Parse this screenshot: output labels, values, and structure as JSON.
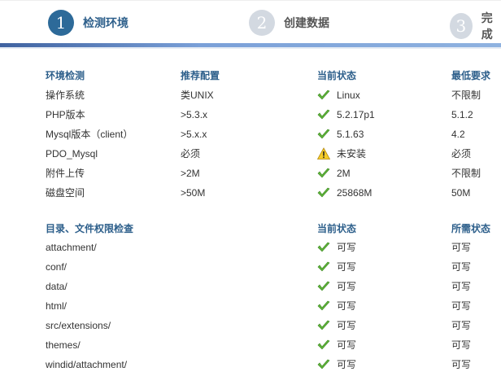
{
  "steps": [
    {
      "num": "1",
      "label": "检测环境",
      "active": true
    },
    {
      "num": "2",
      "label": "创建数据"
    },
    {
      "num": "3",
      "label": "完成"
    }
  ],
  "env": {
    "headers": [
      "环境检测",
      "推荐配置",
      "当前状态",
      "最低要求"
    ],
    "rows": [
      {
        "name": "操作系统",
        "rec": "类UNIX",
        "status": "Linux",
        "icon": "check-icon",
        "min": "不限制"
      },
      {
        "name": "PHP版本",
        "rec": ">5.3.x",
        "status": "5.2.17p1",
        "icon": "check-icon",
        "min": "5.1.2"
      },
      {
        "name": "Mysql版本（client）",
        "rec": ">5.x.x",
        "status": "5.1.63",
        "icon": "check-icon",
        "min": "4.2"
      },
      {
        "name": "PDO_Mysql",
        "rec": "必须",
        "status": "未安装",
        "icon": "warning-icon",
        "min": "必须"
      },
      {
        "name": "附件上传",
        "rec": ">2M",
        "status": "2M",
        "icon": "check-icon",
        "min": "不限制"
      },
      {
        "name": "磁盘空间",
        "rec": ">50M",
        "status": "25868M",
        "icon": "check-icon",
        "min": "50M"
      }
    ]
  },
  "perm": {
    "headers": [
      "目录、文件权限检查",
      "当前状态",
      "所需状态"
    ],
    "rows": [
      {
        "name": "attachment/",
        "status": "可写",
        "req": "可写"
      },
      {
        "name": "conf/",
        "status": "可写",
        "req": "可写"
      },
      {
        "name": "data/",
        "status": "可写",
        "req": "可写"
      },
      {
        "name": "html/",
        "status": "可写",
        "req": "可写"
      },
      {
        "name": "src/extensions/",
        "status": "可写",
        "req": "可写"
      },
      {
        "name": "themes/",
        "status": "可写",
        "req": "可写"
      },
      {
        "name": "windid/attachment/",
        "status": "可写",
        "req": "可写"
      }
    ]
  }
}
